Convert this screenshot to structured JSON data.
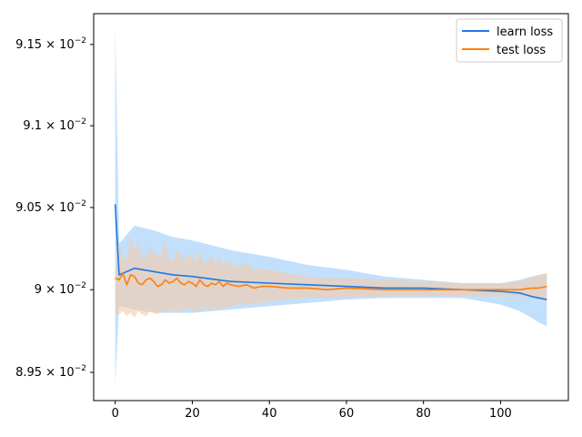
{
  "chart_data": {
    "type": "line",
    "title": "",
    "xlabel": "",
    "ylabel": "",
    "xlim": [
      -5.6,
      117.6
    ],
    "ylim": [
      0.08933,
      0.09169
    ],
    "x_ticks": [
      0,
      20,
      40,
      60,
      80,
      100
    ],
    "y_ticks": [
      {
        "value": 0.0895,
        "mantissa": "8.95",
        "exp": "−2"
      },
      {
        "value": 0.09,
        "mantissa": "9",
        "exp": "−2"
      },
      {
        "value": 0.0905,
        "mantissa": "9.05",
        "exp": "−2"
      },
      {
        "value": 0.091,
        "mantissa": "9.1",
        "exp": "−2"
      },
      {
        "value": 0.0915,
        "mantissa": "9.15",
        "exp": "−2"
      }
    ],
    "y_scale": "log",
    "legend": {
      "placement": "top-right"
    },
    "series": [
      {
        "name": "learn loss",
        "color": "#1f77e4",
        "band_color": "#aed5fb",
        "x": [
          0,
          1,
          5,
          10,
          15,
          20,
          30,
          40,
          50,
          60,
          70,
          80,
          90,
          100,
          105,
          108,
          110,
          112
        ],
        "y": [
          0.09052,
          0.09009,
          0.09013,
          0.09011,
          0.09009,
          0.09008,
          0.09005,
          0.09004,
          0.09003,
          0.09002,
          0.09001,
          0.09001,
          0.09,
          0.08999,
          0.08998,
          0.08996,
          0.08995,
          0.08994
        ],
        "upper": [
          0.09162,
          0.09028,
          0.09039,
          0.09036,
          0.09032,
          0.0903,
          0.09024,
          0.0902,
          0.09015,
          0.09012,
          0.09008,
          0.09006,
          0.09004,
          0.09004,
          0.09006,
          0.09008,
          0.09009,
          0.0901
        ],
        "lower": [
          0.08943,
          0.0899,
          0.08988,
          0.08986,
          0.08986,
          0.08986,
          0.08988,
          0.0899,
          0.08992,
          0.08994,
          0.08995,
          0.08995,
          0.08995,
          0.08991,
          0.08987,
          0.08983,
          0.0898,
          0.08978
        ]
      },
      {
        "name": "test loss",
        "color": "#ff7f0e",
        "band_color": "#f5c9a6",
        "x": [
          0,
          1,
          2,
          3,
          4,
          5,
          6,
          7,
          8,
          9,
          10,
          11,
          12,
          13,
          14,
          15,
          16,
          17,
          18,
          19,
          20,
          21,
          22,
          23,
          24,
          25,
          26,
          27,
          28,
          29,
          30,
          32,
          34,
          36,
          38,
          40,
          45,
          50,
          55,
          60,
          70,
          80,
          90,
          100,
          105,
          108,
          110,
          112
        ],
        "y": [
          0.09007,
          0.09006,
          0.0901,
          0.09003,
          0.09009,
          0.09008,
          0.09004,
          0.09003,
          0.09006,
          0.09007,
          0.09005,
          0.09002,
          0.09003,
          0.09006,
          0.09004,
          0.09005,
          0.09007,
          0.09004,
          0.09003,
          0.09005,
          0.09004,
          0.09002,
          0.09006,
          0.09003,
          0.09002,
          0.09004,
          0.09003,
          0.09005,
          0.09002,
          0.09004,
          0.09003,
          0.09002,
          0.09003,
          0.09001,
          0.09002,
          0.09002,
          0.09001,
          0.09001,
          0.09,
          0.09001,
          0.09,
          0.09,
          0.09,
          0.09,
          0.09,
          0.09001,
          0.09001,
          0.09002
        ],
        "upper": [
          0.09009,
          0.0903,
          0.0902,
          0.09018,
          0.09032,
          0.09024,
          0.0903,
          0.09018,
          0.0902,
          0.09026,
          0.09022,
          0.0902,
          0.09023,
          0.0903,
          0.0902,
          0.09016,
          0.09024,
          0.09022,
          0.09018,
          0.09021,
          0.0902,
          0.09017,
          0.09024,
          0.09016,
          0.09018,
          0.0902,
          0.09016,
          0.0902,
          0.09015,
          0.09018,
          0.09016,
          0.09014,
          0.09016,
          0.09012,
          0.09013,
          0.09012,
          0.0901,
          0.09008,
          0.09007,
          0.09007,
          0.09006,
          0.09005,
          0.09004,
          0.09004,
          0.09005,
          0.09007,
          0.09009,
          0.0901
        ],
        "lower": [
          0.08985,
          0.08985,
          0.08987,
          0.08984,
          0.08986,
          0.08983,
          0.08987,
          0.08985,
          0.08984,
          0.08987,
          0.08986,
          0.08985,
          0.08988,
          0.08986,
          0.08987,
          0.08988,
          0.08986,
          0.08988,
          0.08987,
          0.08989,
          0.08988,
          0.08986,
          0.08988,
          0.08989,
          0.08988,
          0.08987,
          0.08989,
          0.08988,
          0.0899,
          0.08989,
          0.0899,
          0.08991,
          0.08991,
          0.08992,
          0.08992,
          0.08993,
          0.08994,
          0.08995,
          0.08995,
          0.08995,
          0.08996,
          0.08996,
          0.08996,
          0.08996,
          0.08996,
          0.08995,
          0.08994,
          0.08994
        ]
      }
    ]
  }
}
